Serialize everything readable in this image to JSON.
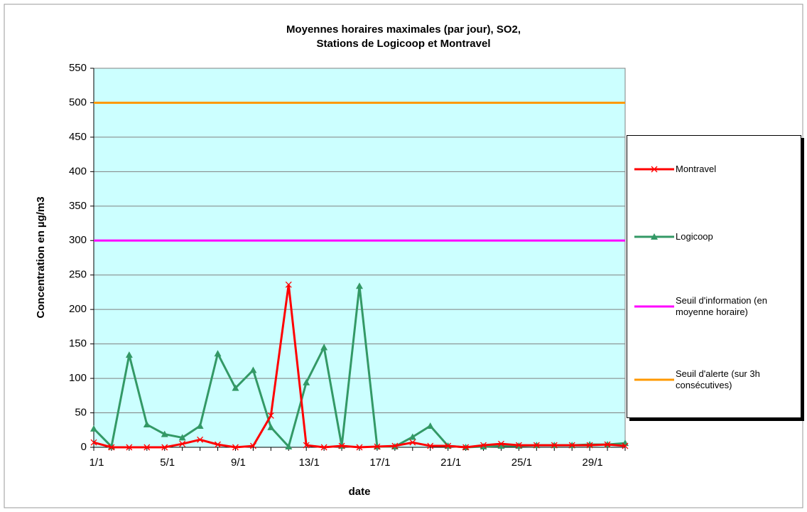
{
  "chart_data": {
    "type": "line",
    "title": [
      "Moyennes horaires maximales (par jour), SO2,",
      "Stations de Logicoop et Montravel"
    ],
    "x_label": "date",
    "y_label": "Concentration  en µg/m3",
    "categories": [
      "1/1",
      null,
      null,
      null,
      "5/1",
      null,
      null,
      null,
      "9/1",
      null,
      null,
      null,
      "13/1",
      null,
      null,
      null,
      "17/1",
      null,
      null,
      null,
      "21/1",
      null,
      null,
      null,
      "25/1",
      null,
      null,
      null,
      "29/1",
      null,
      null
    ],
    "ylim": [
      0,
      550
    ],
    "yticks": [
      0,
      50,
      100,
      150,
      200,
      250,
      300,
      350,
      400,
      450,
      500,
      550
    ],
    "grid": true,
    "series": [
      {
        "name": "Montravel",
        "color": "#ff0000",
        "marker": "x",
        "values": [
          7,
          0,
          0,
          0,
          0,
          5,
          11,
          4,
          0,
          2,
          46,
          236,
          3,
          0,
          2,
          0,
          1,
          2,
          7,
          2,
          2,
          0,
          3,
          5,
          3,
          3,
          3,
          3,
          3,
          4,
          2
        ]
      },
      {
        "name": "Logicoop",
        "color": "#339966",
        "marker": "triangle",
        "values": [
          27,
          1,
          134,
          33,
          19,
          14,
          31,
          136,
          86,
          112,
          29,
          1,
          94,
          145,
          2,
          234,
          1,
          1,
          15,
          31,
          2,
          0,
          1,
          2,
          2,
          3,
          3,
          3,
          4,
          4,
          6
        ]
      },
      {
        "name": "Seuil d'information (en moyenne horaire)",
        "color": "#ff00ff",
        "marker": "none",
        "values": [
          300,
          300,
          300,
          300,
          300,
          300,
          300,
          300,
          300,
          300,
          300,
          300,
          300,
          300,
          300,
          300,
          300,
          300,
          300,
          300,
          300,
          300,
          300,
          300,
          300,
          300,
          300,
          300,
          300,
          300,
          300
        ]
      },
      {
        "name": "Seuil d'alerte (sur 3h consécutives)",
        "color": "#ff9900",
        "marker": "none",
        "values": [
          500,
          500,
          500,
          500,
          500,
          500,
          500,
          500,
          500,
          500,
          500,
          500,
          500,
          500,
          500,
          500,
          500,
          500,
          500,
          500,
          500,
          500,
          500,
          500,
          500,
          500,
          500,
          500,
          500,
          500,
          500
        ]
      }
    ]
  }
}
